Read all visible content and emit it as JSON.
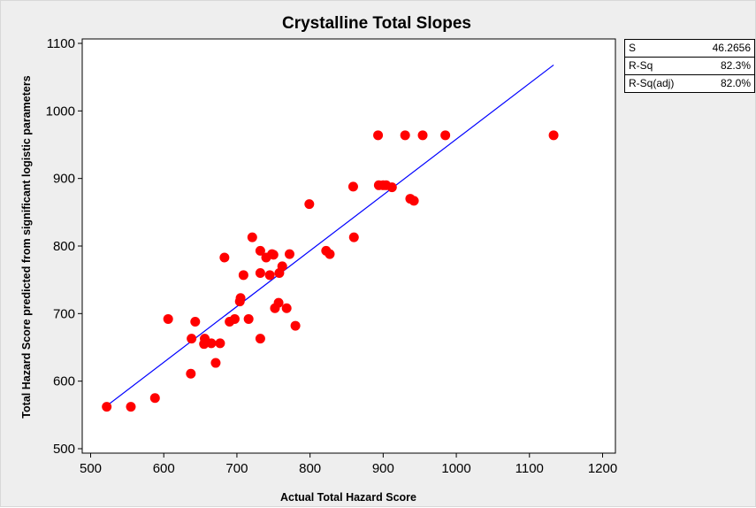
{
  "chart_data": {
    "type": "scatter",
    "title": "Crystalline Total Slopes",
    "xlabel": "Actual Total Hazard Score",
    "ylabel": "Total Hazard Score predicted from significant logistic parameters",
    "xlim": [
      500,
      1200
    ],
    "ylim": [
      500,
      1100
    ],
    "xticks": [
      "500",
      "600",
      "700",
      "800",
      "900",
      "1000",
      "1100",
      "1200"
    ],
    "yticks": [
      "500",
      "600",
      "700",
      "800",
      "900",
      "1000",
      "1100"
    ],
    "grid": false,
    "marker_color": "#ff0000",
    "line_color": "#0000ff",
    "fit_line": {
      "x": [
        525,
        1133
      ],
      "y": [
        566,
        1068
      ]
    },
    "points": [
      {
        "x": 522,
        "y": 562
      },
      {
        "x": 555,
        "y": 562
      },
      {
        "x": 588,
        "y": 575
      },
      {
        "x": 606,
        "y": 692
      },
      {
        "x": 637,
        "y": 611
      },
      {
        "x": 638,
        "y": 663
      },
      {
        "x": 643,
        "y": 688
      },
      {
        "x": 655,
        "y": 655
      },
      {
        "x": 656,
        "y": 663
      },
      {
        "x": 665,
        "y": 656
      },
      {
        "x": 671,
        "y": 627
      },
      {
        "x": 677,
        "y": 656
      },
      {
        "x": 683,
        "y": 783
      },
      {
        "x": 690,
        "y": 688
      },
      {
        "x": 697,
        "y": 692
      },
      {
        "x": 704,
        "y": 718
      },
      {
        "x": 705,
        "y": 723
      },
      {
        "x": 709,
        "y": 757
      },
      {
        "x": 716,
        "y": 692
      },
      {
        "x": 721,
        "y": 813
      },
      {
        "x": 732,
        "y": 663
      },
      {
        "x": 732,
        "y": 760
      },
      {
        "x": 732,
        "y": 793
      },
      {
        "x": 740,
        "y": 783
      },
      {
        "x": 745,
        "y": 757
      },
      {
        "x": 748,
        "y": 788
      },
      {
        "x": 750,
        "y": 787
      },
      {
        "x": 752,
        "y": 708
      },
      {
        "x": 757,
        "y": 716
      },
      {
        "x": 758,
        "y": 760
      },
      {
        "x": 762,
        "y": 770
      },
      {
        "x": 768,
        "y": 708
      },
      {
        "x": 772,
        "y": 788
      },
      {
        "x": 780,
        "y": 682
      },
      {
        "x": 799,
        "y": 862
      },
      {
        "x": 822,
        "y": 793
      },
      {
        "x": 827,
        "y": 788
      },
      {
        "x": 859,
        "y": 888
      },
      {
        "x": 860,
        "y": 813
      },
      {
        "x": 893,
        "y": 964
      },
      {
        "x": 894,
        "y": 890
      },
      {
        "x": 900,
        "y": 890
      },
      {
        "x": 904,
        "y": 890
      },
      {
        "x": 912,
        "y": 887
      },
      {
        "x": 930,
        "y": 964
      },
      {
        "x": 937,
        "y": 870
      },
      {
        "x": 942,
        "y": 867
      },
      {
        "x": 954,
        "y": 964
      },
      {
        "x": 985,
        "y": 964
      },
      {
        "x": 1133,
        "y": 964
      }
    ]
  },
  "stats": [
    {
      "label": "S",
      "value": "46.2656"
    },
    {
      "label": "R-Sq",
      "value": "82.3%"
    },
    {
      "label": "R-Sq(adj)",
      "value": "82.0%"
    }
  ]
}
